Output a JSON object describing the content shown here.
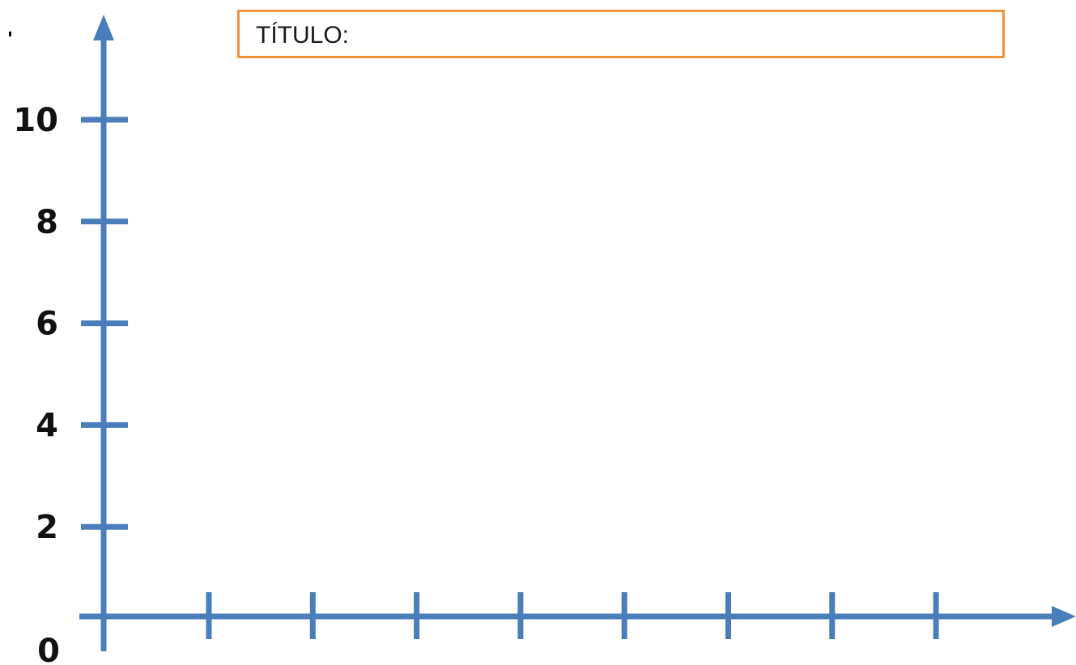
{
  "chart_data": {
    "type": "line",
    "title": "TÍTULO:",
    "xlabel": "",
    "ylabel": "",
    "y_tick_labels": [
      "0",
      "2",
      "4",
      "6",
      "8",
      "10"
    ],
    "y_ticks": [
      0,
      2,
      4,
      6,
      8,
      10
    ],
    "x_tick_count": 8,
    "ylim": [
      0,
      10
    ],
    "series": [],
    "grid": false,
    "axis_color": "#4A7EBB",
    "title_border_color": "#F0923C"
  }
}
